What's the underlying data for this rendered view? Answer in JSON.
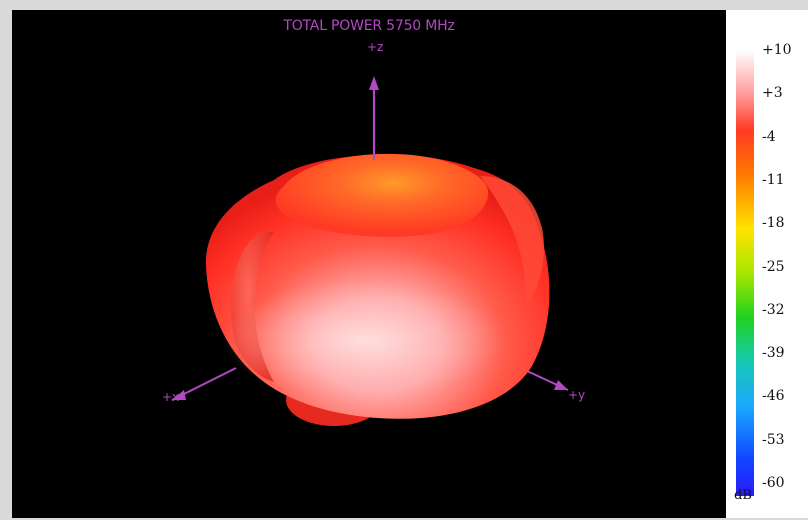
{
  "plot": {
    "title": "TOTAL POWER 5750  MHz",
    "axes": {
      "z": "+z",
      "x": "+x",
      "y": "+y"
    }
  },
  "colorbar": {
    "ticks": [
      "+10",
      "+3",
      "-4",
      "-11",
      "-18",
      "-25",
      "-32",
      "-39",
      "-46",
      "-53",
      "-60"
    ],
    "unit": "dB",
    "min": -60,
    "max": 10
  },
  "colors": {
    "axis": "#b347c4",
    "background": "#000000",
    "body_red": "#ff3a2a",
    "body_highlight": "#ffc2c2"
  }
}
